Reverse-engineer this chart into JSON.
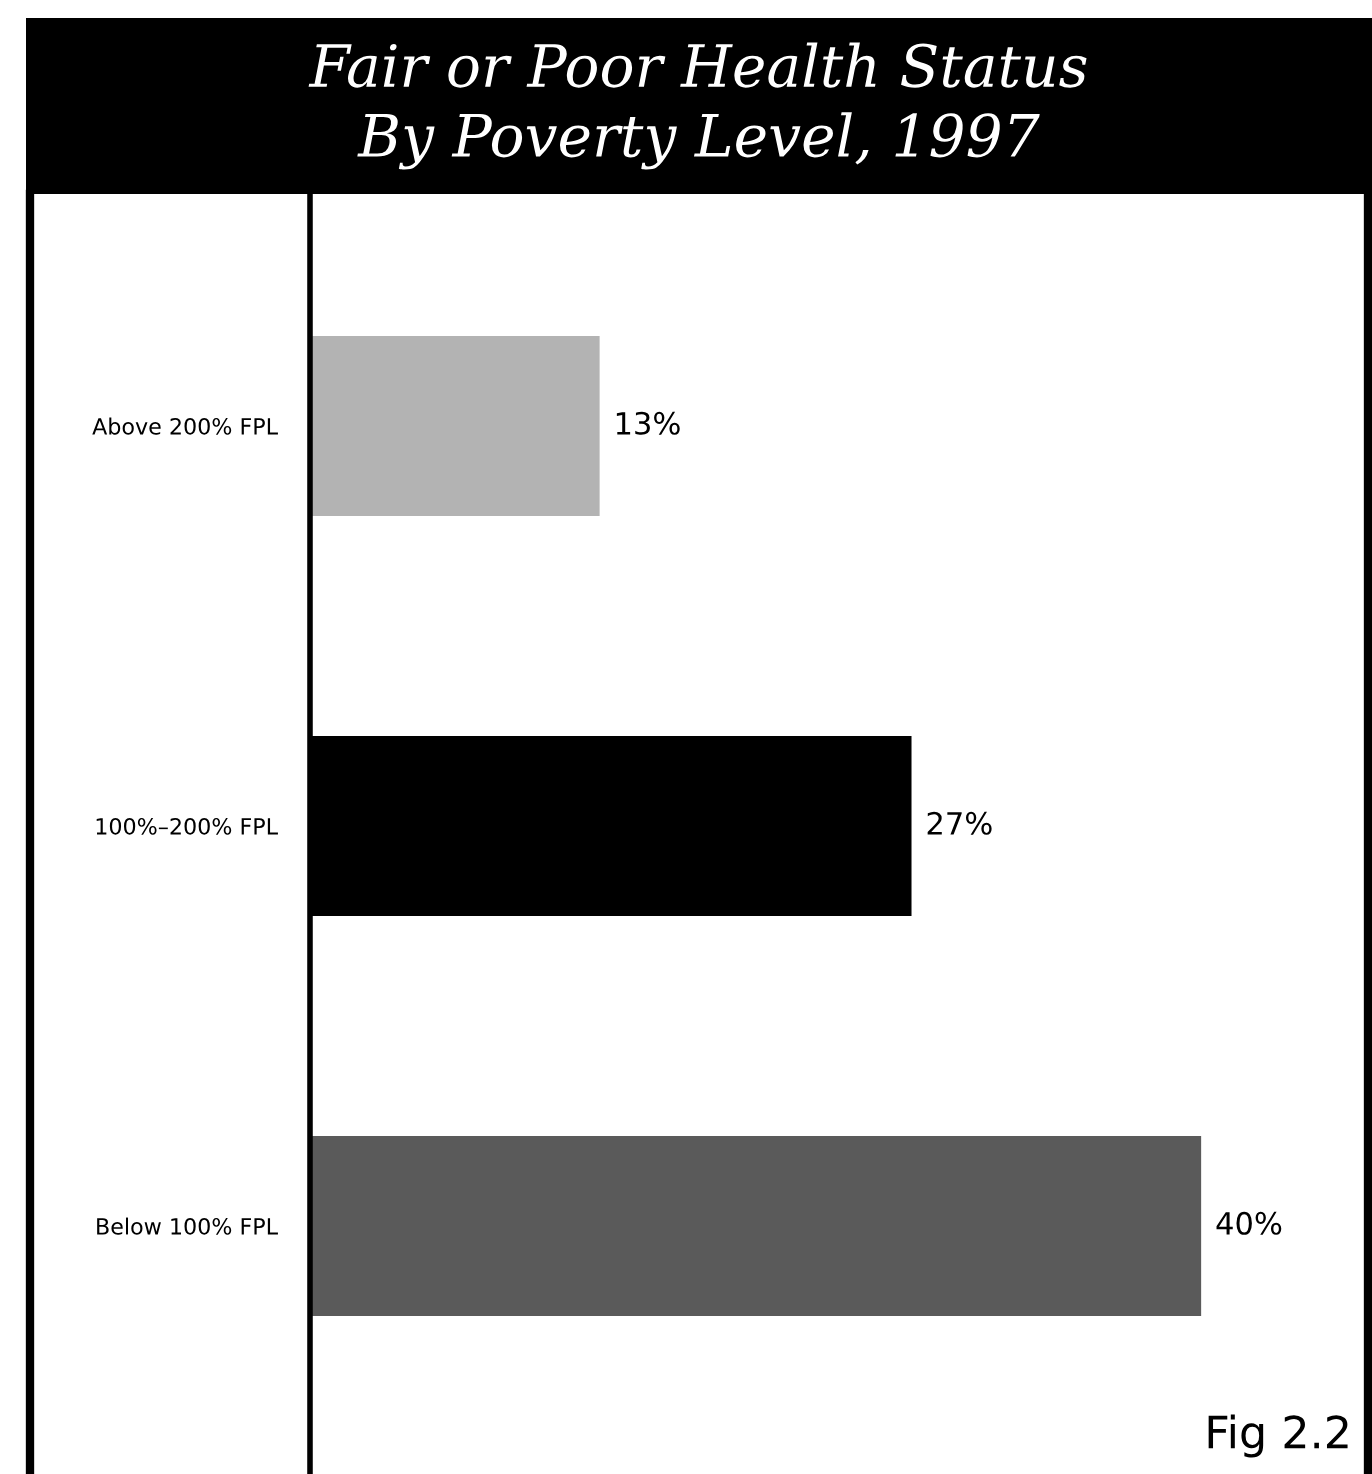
{
  "chart_data": {
    "type": "bar",
    "orientation": "horizontal",
    "title": "Fair or Poor Health Status\nBy Poverty Level, 1997",
    "categories": [
      "Above 200% FPL",
      "100%–200% FPL",
      "Below 100% FPL"
    ],
    "values": [
      13,
      27,
      40
    ],
    "colors": [
      "#b3b3b3",
      "#000000",
      "#5a5a5a"
    ],
    "value_labels": [
      "13%",
      "27%",
      "40%"
    ],
    "tick_labels": "y",
    "grid": false,
    "legend": false,
    "annotations": [
      "Fig 2.2"
    ]
  }
}
